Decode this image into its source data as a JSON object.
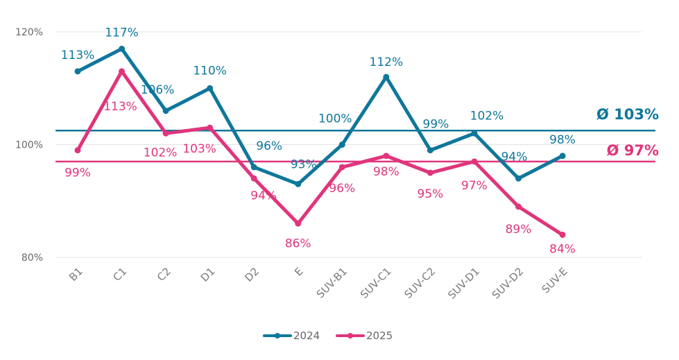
{
  "chart_data": {
    "type": "line",
    "title": "",
    "xlabel": "",
    "ylabel": "",
    "categories": [
      "B1",
      "C1",
      "C2",
      "D1",
      "D2",
      "E",
      "SUV-B1",
      "SUV-C1",
      "SUV-C2",
      "SUV-D1",
      "SUV-D2",
      "SUV-E"
    ],
    "ylim": [
      80,
      120
    ],
    "yticks": [
      {
        "value": 80,
        "label": "80%"
      },
      {
        "value": 100,
        "label": "100%"
      },
      {
        "value": 120,
        "label": "120%"
      }
    ],
    "grid": "horizontal",
    "legend_position": "bottom-center",
    "series": [
      {
        "name": "2024",
        "color": "#0f779b",
        "values": [
          113,
          117,
          106,
          110,
          96,
          93,
          100,
          112,
          99,
          102,
          94,
          98
        ],
        "labels": [
          "113%",
          "117%",
          "106%",
          "110%",
          "96%",
          "93%",
          "100%",
          "112%",
          "99%",
          "102%",
          "94%",
          "98%"
        ],
        "average": {
          "value": 102.5,
          "label": "Ø 103%"
        }
      },
      {
        "name": "2025",
        "color": "#e0357c",
        "values": [
          99,
          113,
          102,
          103,
          94,
          86,
          96,
          98,
          95,
          97,
          89,
          84
        ],
        "labels": [
          "99%",
          "113%",
          "102%",
          "103%",
          "94%",
          "86%",
          "96%",
          "98%",
          "95%",
          "97%",
          "89%",
          "84%"
        ],
        "average": {
          "value": 97,
          "label": "Ø  97%"
        }
      }
    ]
  }
}
